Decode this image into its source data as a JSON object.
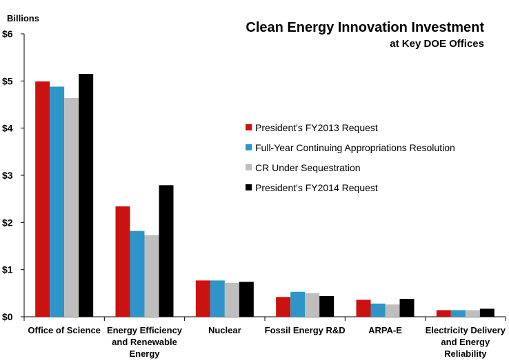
{
  "chart_data": {
    "type": "bar",
    "title": "Clean Energy Innovation Investment",
    "subtitle": "at Key DOE Offices",
    "ylabel": "Billions",
    "xlabel": "",
    "ylim": [
      0,
      6
    ],
    "yticks": [
      "$0",
      "$1",
      "$2",
      "$3",
      "$4",
      "$5",
      "$6"
    ],
    "grid": false,
    "legend_position": "center-right",
    "categories": [
      [
        "Office of Science"
      ],
      [
        "Energy Efficiency",
        "and Renewable",
        "Energy"
      ],
      [
        "Nuclear"
      ],
      [
        "Fossil Energy R&D"
      ],
      [
        "ARPA-E"
      ],
      [
        "Electricity Delivery",
        "and Energy",
        "Reliability"
      ]
    ],
    "series": [
      {
        "name": "President's FY2013 Request",
        "color": "#cc1111",
        "values": [
          4.99,
          2.34,
          0.77,
          0.42,
          0.36,
          0.14
        ]
      },
      {
        "name": "Full-Year Continuing Appropriations Resolution",
        "color": "#2e95c8",
        "values": [
          4.88,
          1.82,
          0.77,
          0.53,
          0.28,
          0.14
        ]
      },
      {
        "name": "CR Under Sequestration",
        "color": "#bebebe",
        "values": [
          4.64,
          1.73,
          0.72,
          0.5,
          0.26,
          0.14
        ]
      },
      {
        "name": "President's FY2014 Request",
        "color": "#000000",
        "values": [
          5.15,
          2.79,
          0.74,
          0.44,
          0.38,
          0.17
        ]
      }
    ]
  }
}
